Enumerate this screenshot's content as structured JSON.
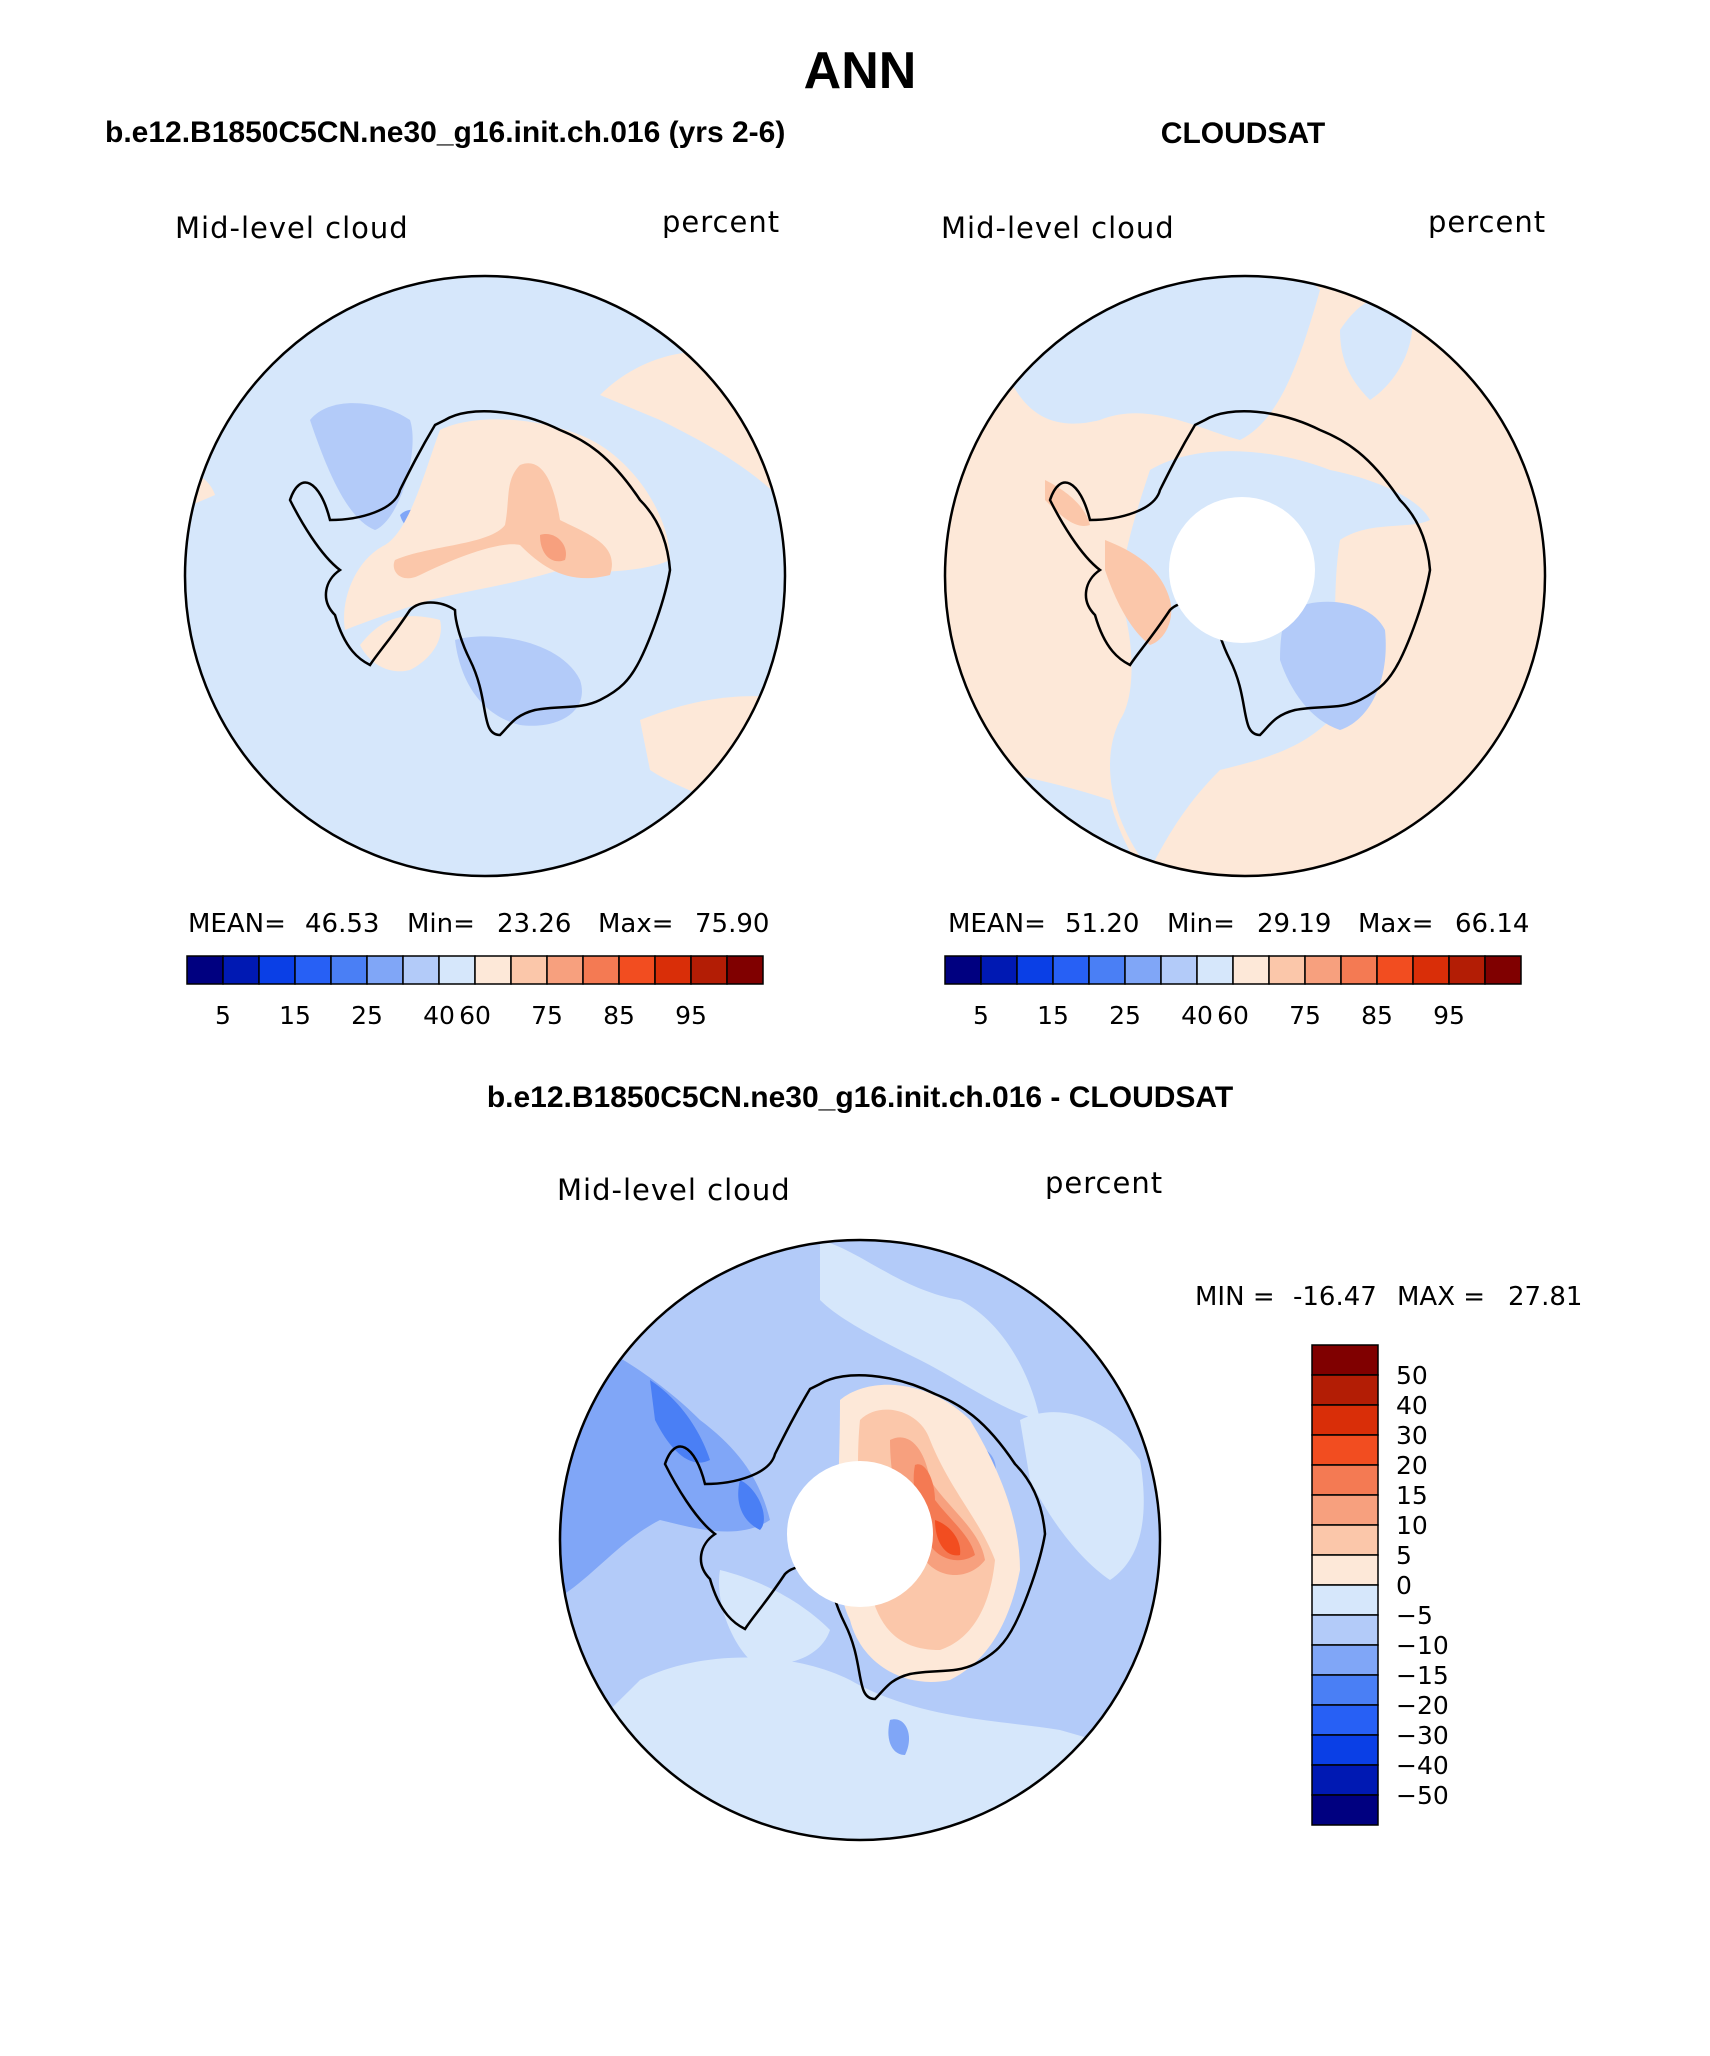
{
  "chart_data": [
    {
      "type": "heatmap",
      "projection": "south-polar-stereographic",
      "title": "b.e12.B1850C5CN.ne30_g16.init.ch.016 (yrs 2-6)",
      "variable": "Mid-level cloud",
      "units": "percent",
      "stats": {
        "mean_label": "MEAN=",
        "mean": "46.53",
        "min_label": "Min=",
        "min": "23.26",
        "max_label": "Max=",
        "max": "75.90"
      },
      "levels": [
        5,
        10,
        15,
        20,
        25,
        30,
        40,
        50,
        60,
        70,
        75,
        80,
        85,
        90,
        95
      ],
      "tick_labels": [
        "5",
        "15",
        "25",
        "40",
        "60",
        "75",
        "85",
        "95"
      ],
      "missing_region": false
    },
    {
      "type": "heatmap",
      "projection": "south-polar-stereographic",
      "title": "CLOUDSAT",
      "variable": "Mid-level cloud",
      "units": "percent",
      "stats": {
        "mean_label": "MEAN=",
        "mean": "51.20",
        "min_label": "Min=",
        "min": "29.19",
        "max_label": "Max=",
        "max": "66.14"
      },
      "levels": [
        5,
        10,
        15,
        20,
        25,
        30,
        40,
        50,
        60,
        70,
        75,
        80,
        85,
        90,
        95
      ],
      "tick_labels": [
        "5",
        "15",
        "25",
        "40",
        "60",
        "75",
        "85",
        "95"
      ],
      "missing_region": true
    },
    {
      "type": "heatmap",
      "projection": "south-polar-stereographic",
      "title": "b.e12.B1850C5CN.ne30_g16.init.ch.016 - CLOUDSAT",
      "variable": "Mid-level cloud",
      "units": "percent",
      "stats": {
        "min_label": "MIN =",
        "min": "-16.47",
        "max_label": "MAX =",
        "max": "27.81"
      },
      "levels": [
        -50,
        -40,
        -30,
        -20,
        -15,
        -10,
        -5,
        0,
        5,
        10,
        15,
        20,
        30,
        40,
        50
      ],
      "tick_labels": [
        "50",
        "40",
        "30",
        "20",
        "15",
        "10",
        "5",
        "0",
        "-5",
        "-10",
        "-15",
        "-20",
        "-30",
        "-40",
        "-50"
      ],
      "missing_region": true
    }
  ],
  "page_title": "ANN",
  "palette": [
    "#000080",
    "#0019b3",
    "#0a3fe6",
    "#2760f5",
    "#4a7ff5",
    "#80a6f7",
    "#b3cbf9",
    "#d6e7fb",
    "#fde8d8",
    "#fbc7aa",
    "#f7a07e",
    "#f47a53",
    "#f24d20",
    "#d92e08",
    "#b31d05",
    "#800000"
  ]
}
